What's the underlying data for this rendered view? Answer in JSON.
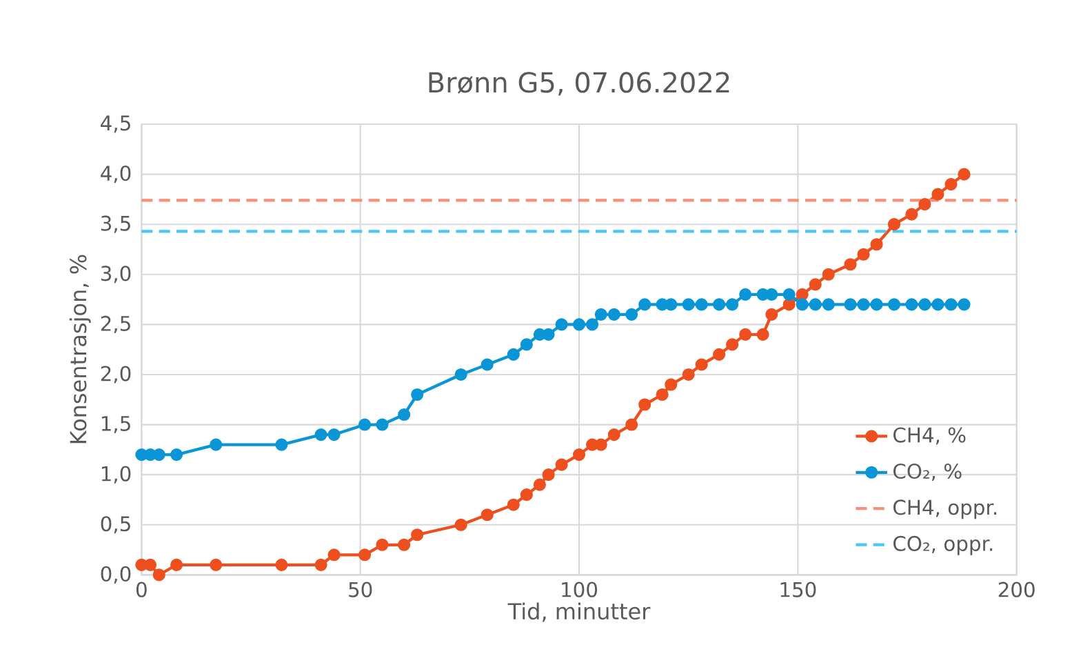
{
  "chart_data": {
    "type": "line",
    "title": "Brønn G5, 07.06.2022",
    "xlabel": "Tid, minutter",
    "ylabel": "Konsentrasjon, %",
    "x": [
      0,
      2,
      4,
      8,
      17,
      32,
      41,
      44,
      51,
      55,
      60,
      63,
      73,
      79,
      85,
      88,
      91,
      93,
      96,
      100,
      103,
      105,
      108,
      112,
      115,
      119,
      121,
      125,
      128,
      132,
      135,
      138,
      142,
      144,
      148,
      151,
      154,
      157,
      162,
      165,
      168,
      172,
      176,
      179,
      182,
      185,
      188
    ],
    "series": [
      {
        "name": "CH4, %",
        "color": "#ee4f1e",
        "values": [
          0.1,
          0.1,
          0.0,
          0.1,
          0.1,
          0.1,
          0.1,
          0.2,
          0.2,
          0.3,
          0.3,
          0.4,
          0.5,
          0.6,
          0.7,
          0.8,
          0.9,
          1.0,
          1.1,
          1.2,
          1.3,
          1.3,
          1.4,
          1.5,
          1.7,
          1.8,
          1.9,
          2.0,
          2.1,
          2.2,
          2.3,
          2.4,
          2.4,
          2.6,
          2.7,
          2.8,
          2.9,
          3.0,
          3.1,
          3.2,
          3.3,
          3.5,
          3.6,
          3.7,
          3.8,
          3.9,
          4.0
        ]
      },
      {
        "name": "CO₂, %",
        "color": "#0a96d6",
        "values": [
          1.2,
          1.2,
          1.2,
          1.2,
          1.3,
          1.3,
          1.4,
          1.4,
          1.5,
          1.5,
          1.6,
          1.8,
          2.0,
          2.1,
          2.2,
          2.3,
          2.4,
          2.4,
          2.5,
          2.5,
          2.5,
          2.6,
          2.6,
          2.6,
          2.7,
          2.7,
          2.7,
          2.7,
          2.7,
          2.7,
          2.7,
          2.8,
          2.8,
          2.8,
          2.8,
          2.7,
          2.7,
          2.7,
          2.7,
          2.7,
          2.7,
          2.7,
          2.7,
          2.7,
          2.7,
          2.7,
          2.7
        ]
      }
    ],
    "ref_lines": [
      {
        "axis": "y",
        "value": 3.74,
        "label": "CH4, oppr.",
        "color": "#f4907a",
        "line_style": "dashed"
      },
      {
        "axis": "y",
        "value": 3.43,
        "label": "CO₂, oppr.",
        "color": "#4dc8f5",
        "line_style": "dashed"
      }
    ],
    "xlim": [
      0,
      200
    ],
    "xticks": [
      0,
      50,
      100,
      150,
      200
    ],
    "ylim": [
      0,
      4.5
    ],
    "yticks": [
      {
        "value": 0,
        "label": "0,0"
      },
      {
        "value": 0.5,
        "label": "0,5"
      },
      {
        "value": 1,
        "label": "1,0"
      },
      {
        "value": 1.5,
        "label": "1,5"
      },
      {
        "value": 2,
        "label": "2,0"
      },
      {
        "value": 2.5,
        "label": "2,5"
      },
      {
        "value": 3,
        "label": "3,0"
      },
      {
        "value": 3.5,
        "label": "3,5"
      },
      {
        "value": 4,
        "label": "4,0"
      },
      {
        "value": 4.5,
        "label": "4,5"
      }
    ],
    "grid": true,
    "legend": "bottom right",
    "marker": "circle",
    "line_style": "solid"
  }
}
